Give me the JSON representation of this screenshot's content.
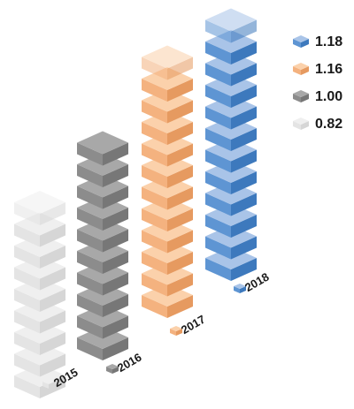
{
  "chart_data": {
    "type": "bar",
    "title": "",
    "xlabel": "",
    "ylabel": "",
    "categories": [
      "2015",
      "2016",
      "2017",
      "2018"
    ],
    "values": [
      0.82,
      1.0,
      1.16,
      1.18
    ],
    "units_per_block": 0.1,
    "legend": {
      "placement": "top-right",
      "entries": [
        {
          "label": "1.18",
          "category": "2018"
        },
        {
          "label": "1.16",
          "category": "2017"
        },
        {
          "label": "1.00",
          "category": "2016"
        },
        {
          "label": "0.82",
          "category": "2015"
        }
      ]
    },
    "colors": {
      "2015": {
        "top": "#efefef",
        "left": "#e4e4e4",
        "right": "#d6d6d6"
      },
      "2016": {
        "top": "#a8a8a8",
        "left": "#8c8c8c",
        "right": "#777777"
      },
      "2017": {
        "top": "#fbd1ab",
        "left": "#f4b27f",
        "right": "#e69a60"
      },
      "2018": {
        "top": "#a9c4e8",
        "left": "#5e95d3",
        "right": "#3d79bd"
      }
    },
    "grid": false
  }
}
